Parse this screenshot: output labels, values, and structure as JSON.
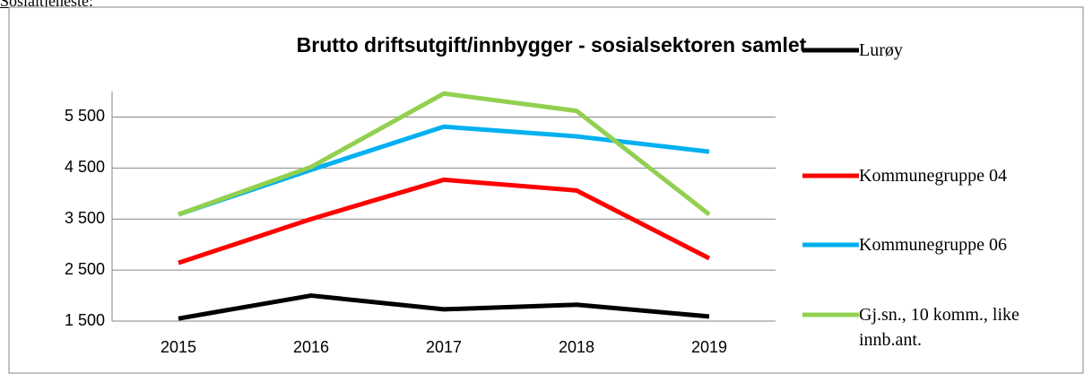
{
  "heading": "Sosialtjeneste:",
  "chart_data": {
    "type": "line",
    "title": "Brutto driftsutgift/innbygger - sosialsektoren samlet",
    "categories": [
      "2015",
      "2016",
      "2017",
      "2018",
      "2019"
    ],
    "series": [
      {
        "name": "Lurøy",
        "color": "#000000",
        "values": [
          1550,
          2000,
          1730,
          1820,
          1590
        ]
      },
      {
        "name": "Kommunegruppe 04",
        "color": "#ff0000",
        "values": [
          2640,
          3500,
          4270,
          4060,
          2730
        ]
      },
      {
        "name": "Kommunegruppe 06",
        "color": "#00b0f0",
        "values": [
          3590,
          4465,
          5310,
          5120,
          4820
        ]
      },
      {
        "name": "Gj.sn., 10 komm., like innb.ant.",
        "color": "#92d050",
        "values": [
          3590,
          4520,
          5960,
          5620,
          3590
        ]
      }
    ],
    "ylim": [
      1500,
      6000
    ],
    "yticks": [
      {
        "value": 1500,
        "label": "1 500"
      },
      {
        "value": 2500,
        "label": "2 500"
      },
      {
        "value": 3500,
        "label": "3 500"
      },
      {
        "value": 4500,
        "label": "4 500"
      },
      {
        "value": 5500,
        "label": "5 500"
      }
    ],
    "grid": true,
    "legend": "right"
  }
}
